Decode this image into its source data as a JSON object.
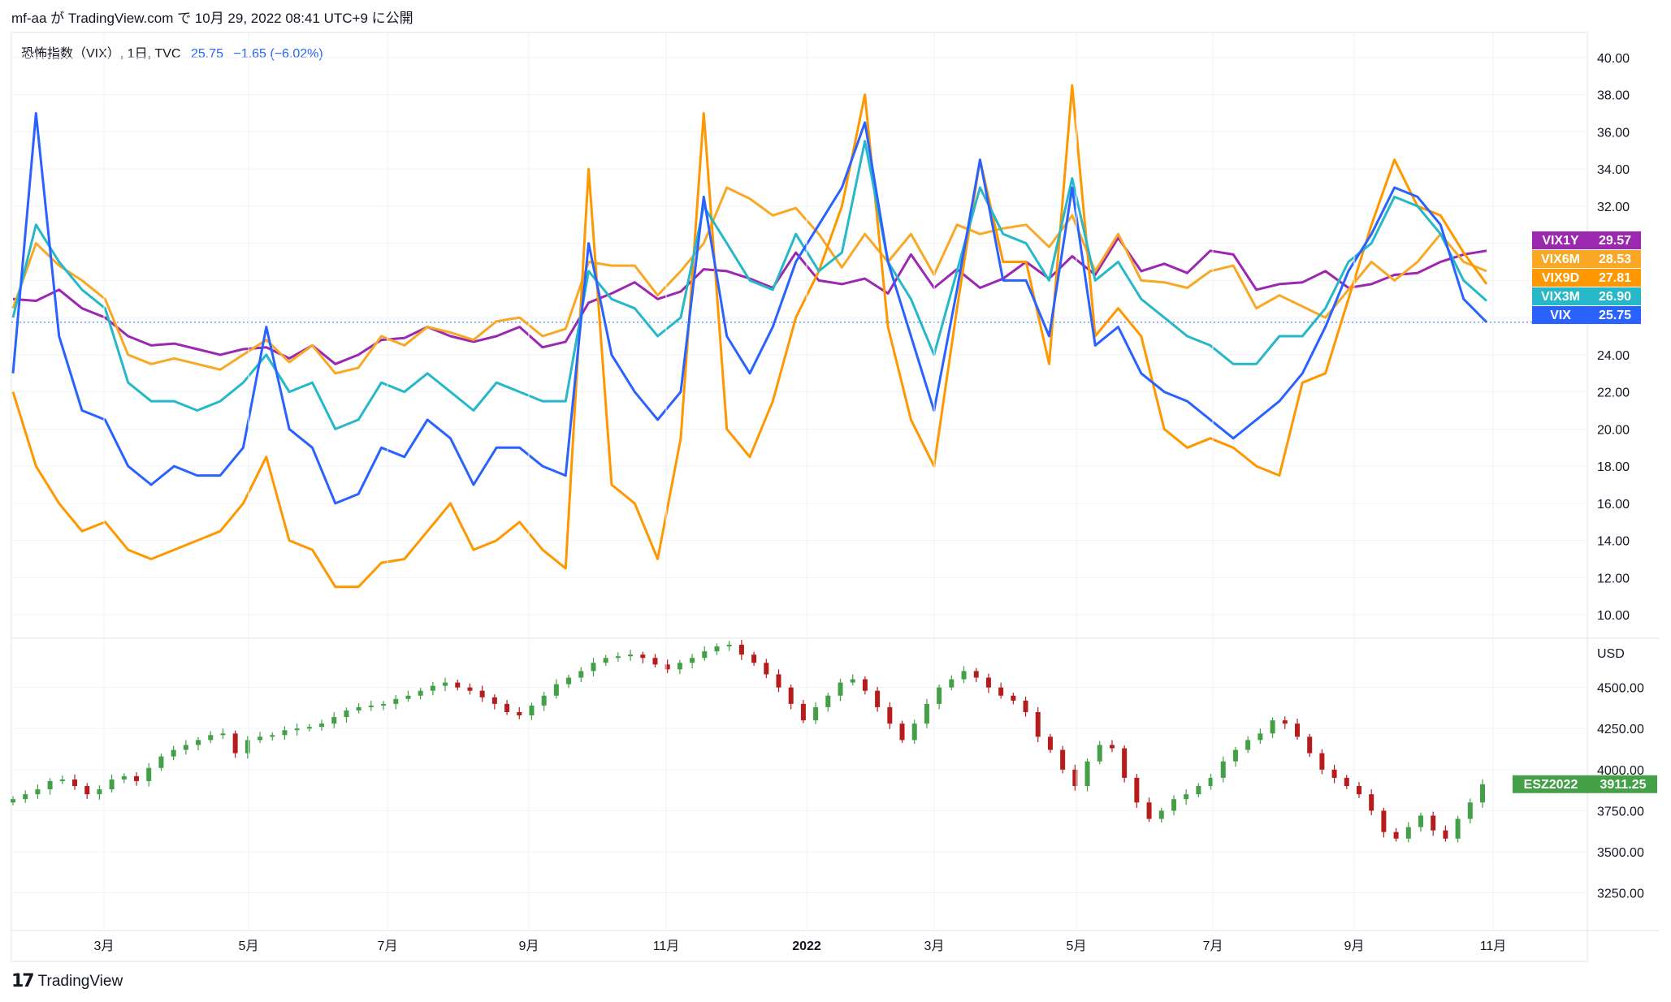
{
  "header": {
    "text": "mf-aa が TradingView.com で 10月 29, 2022 08:41 UTC+9 に公開"
  },
  "legend": {
    "name": "恐怖指数（VIX）, 1日, TVC",
    "value": "25.75",
    "change": "−1.65 (−6.02%)"
  },
  "footer": {
    "brand": "TradingView"
  },
  "colors": {
    "VIX1Y": "#9c27b0",
    "VIX6M": "#f9a825",
    "VIX9D": "#ff9800",
    "VIX3M": "#26b8c8",
    "VIX": "#2962ff",
    "ESZ2022": "#43a047",
    "down": "#b71c1c"
  },
  "chart_data": [
    {
      "type": "line",
      "ylim": [
        9,
        41
      ],
      "y_ticks": [
        "40.00",
        "38.00",
        "36.00",
        "34.00",
        "32.00",
        "30.00",
        "28.00",
        "26.00",
        "24.00",
        "22.00",
        "20.00",
        "18.00",
        "16.00",
        "14.00",
        "12.00",
        "10.00"
      ],
      "x_ticks": [
        "3月",
        "5月",
        "7月",
        "9月",
        "11月",
        "2022",
        "3月",
        "5月",
        "7月",
        "9月",
        "11月"
      ],
      "series": [
        {
          "name": "VIX1Y",
          "last": "29.57",
          "values": [
            27.0,
            26.9,
            27.5,
            26.5,
            26.0,
            25.0,
            24.5,
            24.6,
            24.3,
            24.0,
            24.3,
            24.4,
            23.8,
            24.5,
            23.5,
            24.0,
            24.8,
            24.9,
            25.5,
            25.0,
            24.7,
            25.0,
            25.5,
            24.4,
            24.7,
            26.8,
            27.3,
            27.9,
            27.0,
            27.4,
            28.6,
            28.5,
            28.1,
            27.6,
            29.5,
            28.0,
            27.8,
            28.1,
            27.3,
            29.4,
            27.6,
            28.6,
            27.6,
            28.1,
            29.0,
            28.1,
            29.3,
            28.3,
            30.3,
            28.5,
            28.9,
            28.4,
            29.6,
            29.4,
            27.5,
            27.8,
            27.9,
            28.5,
            27.6,
            27.8,
            28.3,
            28.4,
            29.0,
            29.4,
            29.6
          ]
        },
        {
          "name": "VIX6M",
          "last": "28.53",
          "values": [
            26.5,
            30.0,
            28.8,
            28.0,
            27.0,
            24.0,
            23.5,
            23.8,
            23.5,
            23.2,
            24.0,
            24.8,
            23.6,
            24.5,
            23.0,
            23.3,
            25.0,
            24.5,
            25.5,
            25.2,
            24.8,
            25.8,
            26.0,
            25.0,
            25.4,
            29.0,
            28.8,
            28.8,
            27.2,
            28.5,
            30.0,
            33.0,
            32.4,
            31.5,
            31.9,
            30.5,
            28.7,
            30.5,
            29.0,
            30.5,
            28.3,
            31.0,
            30.5,
            30.8,
            31.0,
            29.8,
            31.5,
            28.5,
            30.5,
            28.0,
            27.9,
            27.6,
            28.5,
            28.8,
            26.5,
            27.2,
            26.6,
            26.0,
            27.5,
            29.0,
            28.0,
            29.0,
            30.5,
            29.0,
            28.5
          ]
        },
        {
          "name": "VIX9D",
          "last": "27.81",
          "values": [
            22.0,
            18.0,
            16.0,
            14.5,
            15.0,
            13.5,
            13.0,
            13.5,
            14.0,
            14.5,
            16.0,
            18.5,
            14.0,
            13.5,
            11.5,
            11.5,
            12.8,
            13.0,
            14.5,
            16.0,
            13.5,
            14.0,
            15.0,
            13.5,
            12.5,
            34.0,
            17.0,
            16.0,
            13.0,
            19.5,
            37.0,
            20.0,
            18.5,
            21.5,
            26.0,
            28.5,
            32.0,
            38.0,
            25.5,
            20.5,
            18.0,
            26.5,
            34.5,
            29.0,
            29.0,
            23.5,
            38.5,
            25.0,
            26.5,
            25.0,
            20.0,
            19.0,
            19.5,
            19.0,
            18.0,
            17.5,
            22.5,
            23.0,
            27.0,
            31.0,
            34.5,
            32.0,
            31.5,
            29.5,
            27.8
          ]
        },
        {
          "name": "VIX3M",
          "last": "26.90",
          "values": [
            26.0,
            31.0,
            29.0,
            27.5,
            26.5,
            22.5,
            21.5,
            21.5,
            21.0,
            21.5,
            22.5,
            24.0,
            22.0,
            22.5,
            20.0,
            20.5,
            22.5,
            22.0,
            23.0,
            22.0,
            21.0,
            22.5,
            22.0,
            21.5,
            21.5,
            28.5,
            27.0,
            26.5,
            25.0,
            26.0,
            32.0,
            30.0,
            28.0,
            27.5,
            30.5,
            28.5,
            29.5,
            35.5,
            29.0,
            27.0,
            24.0,
            28.5,
            33.0,
            30.5,
            30.0,
            28.0,
            33.5,
            28.0,
            29.0,
            27.0,
            26.0,
            25.0,
            24.5,
            23.5,
            23.5,
            25.0,
            25.0,
            26.5,
            29.0,
            30.0,
            32.5,
            32.0,
            30.5,
            28.0,
            26.9
          ]
        },
        {
          "name": "VIX",
          "last": "25.75",
          "values": [
            23.0,
            37.0,
            25.0,
            21.0,
            20.5,
            18.0,
            17.0,
            18.0,
            17.5,
            17.5,
            19.0,
            25.5,
            20.0,
            19.0,
            16.0,
            16.5,
            19.0,
            18.5,
            20.5,
            19.5,
            17.0,
            19.0,
            19.0,
            18.0,
            17.5,
            30.0,
            24.0,
            22.0,
            20.5,
            22.0,
            32.5,
            25.0,
            23.0,
            25.5,
            29.0,
            31.0,
            33.0,
            36.5,
            29.0,
            25.0,
            21.0,
            27.5,
            34.5,
            28.0,
            28.0,
            25.0,
            33.0,
            24.5,
            25.5,
            23.0,
            22.0,
            21.5,
            20.5,
            19.5,
            20.5,
            21.5,
            23.0,
            25.5,
            28.5,
            30.5,
            33.0,
            32.5,
            31.0,
            27.0,
            25.75
          ]
        }
      ]
    },
    {
      "type": "candlestick",
      "name": "ESZ2022",
      "last": "3911.25",
      "unit": "USD",
      "ylim": [
        3050,
        4780
      ],
      "y_ticks": [
        "4500.00",
        "4250.00",
        "4000.00",
        "3750.00",
        "3500.00",
        "3250.00"
      ],
      "closes": [
        3820,
        3850,
        3880,
        3930,
        3940,
        3900,
        3850,
        3880,
        3940,
        3960,
        3930,
        4010,
        4080,
        4120,
        4150,
        4180,
        4210,
        4220,
        4100,
        4180,
        4200,
        4210,
        4240,
        4250,
        4260,
        4280,
        4320,
        4360,
        4380,
        4390,
        4400,
        4430,
        4450,
        4480,
        4510,
        4530,
        4500,
        4480,
        4440,
        4400,
        4350,
        4330,
        4390,
        4450,
        4520,
        4560,
        4600,
        4650,
        4680,
        4690,
        4700,
        4680,
        4640,
        4610,
        4650,
        4680,
        4720,
        4750,
        4760,
        4700,
        4650,
        4580,
        4500,
        4400,
        4300,
        4380,
        4450,
        4530,
        4550,
        4480,
        4380,
        4280,
        4180,
        4280,
        4400,
        4500,
        4550,
        4600,
        4560,
        4500,
        4450,
        4420,
        4350,
        4200,
        4120,
        4000,
        3900,
        4050,
        4150,
        4130,
        3950,
        3800,
        3700,
        3750,
        3820,
        3850,
        3900,
        3950,
        4050,
        4120,
        4180,
        4220,
        4300,
        4280,
        4200,
        4100,
        4000,
        3950,
        3900,
        3850,
        3750,
        3620,
        3580,
        3650,
        3720,
        3630,
        3580,
        3700,
        3800,
        3911
      ]
    }
  ]
}
